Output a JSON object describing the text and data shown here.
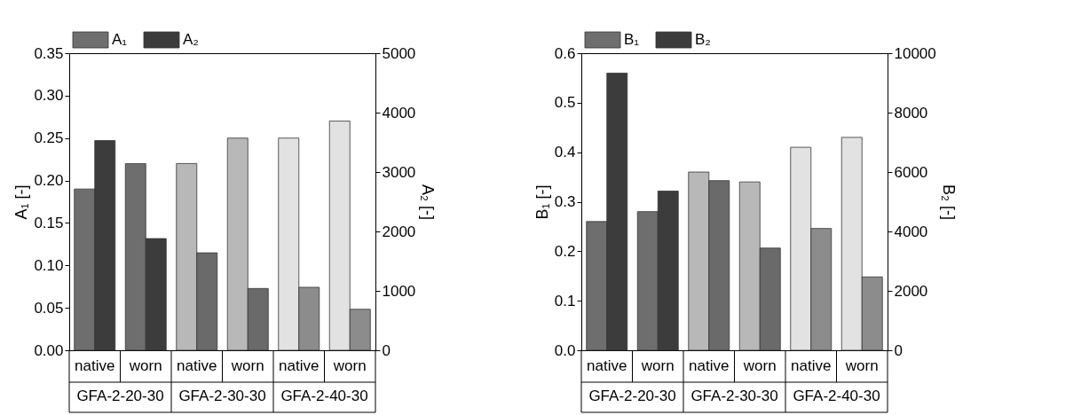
{
  "chart_data": [
    {
      "type": "bar",
      "categories": [
        "native",
        "worn",
        "native",
        "worn",
        "native",
        "worn"
      ],
      "annotations": [
        "GFA-2-20-30",
        "GFA-2-30-30",
        "GFA-2-40-30"
      ],
      "ylabel": "A₁ [-]",
      "y2label": "A₂ [-]",
      "ylim": [
        0,
        0.35
      ],
      "yticks": [
        {
          "value": 0,
          "label": "0.00"
        },
        {
          "value": 0.05,
          "label": "0.05"
        },
        {
          "value": 0.1,
          "label": "0.10"
        },
        {
          "value": 0.15,
          "label": "0.15"
        },
        {
          "value": 0.2,
          "label": "0.20"
        },
        {
          "value": 0.25,
          "label": "0.25"
        },
        {
          "value": 0.3,
          "label": "0.30"
        },
        {
          "value": 0.35,
          "label": "0.35"
        }
      ],
      "y2lim": [
        0,
        5000
      ],
      "y2ticks": [
        0,
        1000,
        2000,
        3000,
        4000,
        5000
      ],
      "grid": false,
      "legend": "top left",
      "series": [
        {
          "name": "A₁",
          "colors": [
            "#6e6e6e",
            "#6e6e6e",
            "#b8b8b8",
            "#b8b8b8",
            "#e2e2e2",
            "#e2e2e2"
          ],
          "values": [
            0.19,
            0.22,
            0.22,
            0.25,
            0.25,
            0.27
          ]
        },
        {
          "name": "A₂",
          "axis": "y2",
          "colors": [
            "#3c3c3c",
            "#3c3c3c",
            "#6a6a6a",
            "#6a6a6a",
            "#8c8c8c",
            "#8c8c8c"
          ],
          "values": [
            3530,
            1880,
            1640,
            1040,
            1060,
            690
          ]
        }
      ]
    },
    {
      "type": "bar",
      "categories": [
        "native",
        "worn",
        "native",
        "worn",
        "native",
        "worn"
      ],
      "annotations": [
        "GFA-2-20-30",
        "GFA-2-30-30",
        "GFA-2-40-30"
      ],
      "ylabel": "B₁ [-]",
      "y2label": "B₂ [-]",
      "ylim": [
        0,
        0.6
      ],
      "yticks": [
        {
          "value": 0,
          "label": "0.0"
        },
        {
          "value": 0.1,
          "label": "0.1"
        },
        {
          "value": 0.2,
          "label": "0.2"
        },
        {
          "value": 0.3,
          "label": "0.3"
        },
        {
          "value": 0.4,
          "label": "0.4"
        },
        {
          "value": 0.5,
          "label": "0.5"
        },
        {
          "value": 0.6,
          "label": "0.6"
        }
      ],
      "y2lim": [
        0,
        10000
      ],
      "y2ticks": [
        0,
        2000,
        4000,
        6000,
        8000,
        10000
      ],
      "grid": false,
      "legend": "top left",
      "series": [
        {
          "name": "B₁",
          "colors": [
            "#6e6e6e",
            "#6e6e6e",
            "#b8b8b8",
            "#b8b8b8",
            "#e2e2e2",
            "#e2e2e2"
          ],
          "values": [
            0.26,
            0.28,
            0.36,
            0.34,
            0.41,
            0.43
          ]
        },
        {
          "name": "B₂",
          "axis": "y2",
          "colors": [
            "#3c3c3c",
            "#3c3c3c",
            "#6a6a6a",
            "#6a6a6a",
            "#8c8c8c",
            "#8c8c8c"
          ],
          "values": [
            9330,
            5360,
            5710,
            3440,
            4100,
            2470
          ]
        }
      ]
    }
  ]
}
